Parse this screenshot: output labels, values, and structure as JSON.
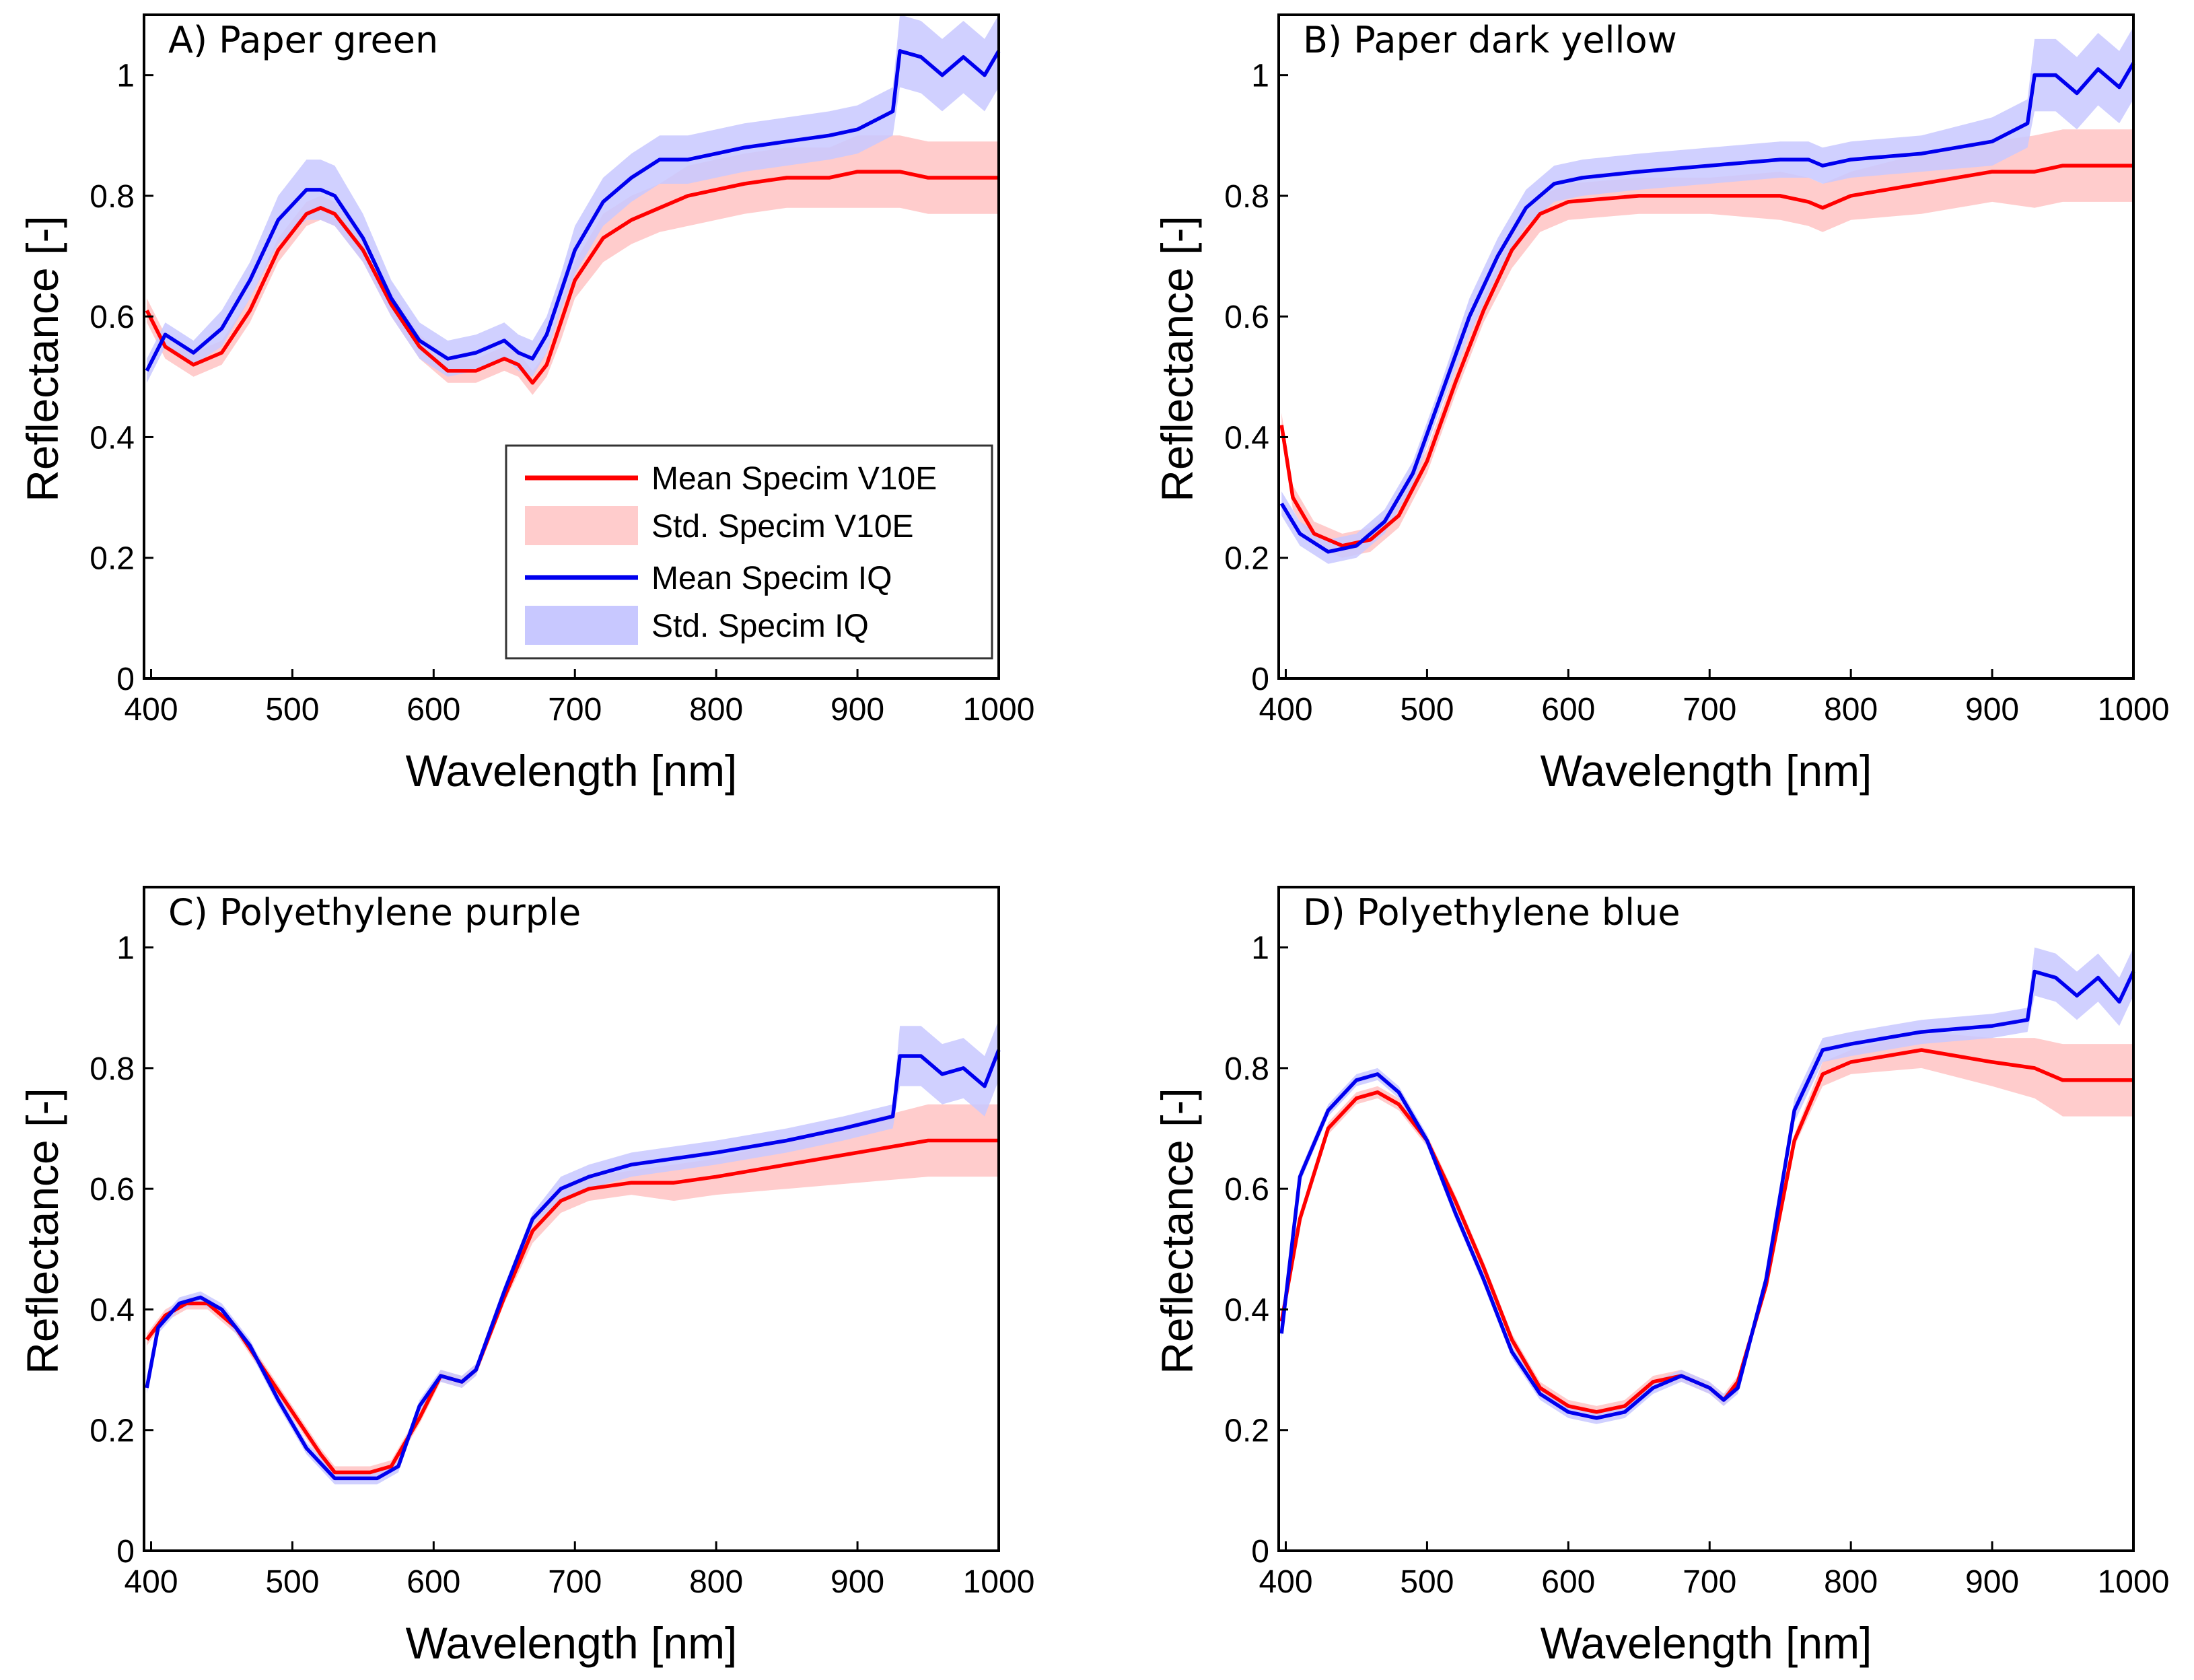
{
  "colors": {
    "v10e_line": "#ff0000",
    "v10e_band": "#ffcccc",
    "iq_line": "#0000ee",
    "iq_band": "#c8c8ff"
  },
  "legend": {
    "placement": "lower-right (panel A)",
    "items": [
      {
        "label": "Mean Specim V10E",
        "kind": "line",
        "color": "#ff0000"
      },
      {
        "label": "Std. Specim V10E",
        "kind": "band",
        "color": "#ffcccc"
      },
      {
        "label": "Mean Specim IQ",
        "kind": "line",
        "color": "#0000ee"
      },
      {
        "label": "Std. Specim IQ",
        "kind": "band",
        "color": "#c8c8ff"
      }
    ]
  },
  "chart_data": [
    {
      "type": "line",
      "title": "A) Paper green",
      "xlabel": "Wavelength [nm]",
      "ylabel": "Reflectance [-]",
      "xlim": [
        395,
        1000
      ],
      "ylim": [
        0,
        1.1
      ],
      "xticks": [
        "400",
        "500",
        "600",
        "700",
        "800",
        "900",
        "1000"
      ],
      "yticks": [
        "0",
        "0.2",
        "0.4",
        "0.6",
        "0.8",
        "1"
      ],
      "grid": false,
      "series": [
        {
          "name": "Mean Specim V10E",
          "x": [
            397,
            410,
            430,
            450,
            470,
            490,
            510,
            520,
            530,
            550,
            570,
            590,
            610,
            630,
            650,
            660,
            670,
            680,
            690,
            700,
            720,
            740,
            760,
            780,
            800,
            820,
            850,
            880,
            900,
            930,
            950,
            1000
          ],
          "y": [
            0.61,
            0.55,
            0.52,
            0.54,
            0.61,
            0.71,
            0.77,
            0.78,
            0.77,
            0.71,
            0.62,
            0.55,
            0.51,
            0.51,
            0.53,
            0.52,
            0.49,
            0.52,
            0.59,
            0.66,
            0.73,
            0.76,
            0.78,
            0.8,
            0.81,
            0.82,
            0.83,
            0.83,
            0.84,
            0.84,
            0.83,
            0.83
          ],
          "std": [
            0.02,
            0.02,
            0.02,
            0.02,
            0.02,
            0.02,
            0.02,
            0.02,
            0.02,
            0.02,
            0.02,
            0.02,
            0.02,
            0.02,
            0.02,
            0.02,
            0.02,
            0.02,
            0.03,
            0.03,
            0.04,
            0.04,
            0.04,
            0.05,
            0.05,
            0.05,
            0.05,
            0.05,
            0.06,
            0.06,
            0.06,
            0.06
          ]
        },
        {
          "name": "Mean Specim IQ",
          "x": [
            397,
            410,
            430,
            450,
            470,
            490,
            510,
            520,
            530,
            550,
            570,
            590,
            610,
            630,
            650,
            660,
            670,
            680,
            690,
            700,
            720,
            740,
            760,
            780,
            800,
            820,
            850,
            880,
            900,
            925,
            930,
            945,
            960,
            975,
            990,
            1000
          ],
          "y": [
            0.51,
            0.57,
            0.54,
            0.58,
            0.66,
            0.76,
            0.81,
            0.81,
            0.8,
            0.73,
            0.63,
            0.56,
            0.53,
            0.54,
            0.56,
            0.54,
            0.53,
            0.57,
            0.64,
            0.71,
            0.79,
            0.83,
            0.86,
            0.86,
            0.87,
            0.88,
            0.89,
            0.9,
            0.91,
            0.94,
            1.04,
            1.03,
            1.0,
            1.03,
            1.0,
            1.04
          ],
          "std": [
            0.02,
            0.02,
            0.02,
            0.03,
            0.03,
            0.04,
            0.05,
            0.05,
            0.05,
            0.04,
            0.03,
            0.03,
            0.03,
            0.03,
            0.03,
            0.03,
            0.03,
            0.03,
            0.03,
            0.04,
            0.04,
            0.04,
            0.04,
            0.04,
            0.04,
            0.04,
            0.04,
            0.04,
            0.04,
            0.04,
            0.06,
            0.06,
            0.06,
            0.06,
            0.06,
            0.06
          ]
        }
      ]
    },
    {
      "type": "line",
      "title": "B) Paper dark yellow",
      "xlabel": "Wavelength [nm]",
      "ylabel": "Reflectance [-]",
      "xlim": [
        395,
        1000
      ],
      "ylim": [
        0,
        1.1
      ],
      "xticks": [
        "400",
        "500",
        "600",
        "700",
        "800",
        "900",
        "1000"
      ],
      "yticks": [
        "0",
        "0.2",
        "0.4",
        "0.6",
        "0.8",
        "1"
      ],
      "grid": false,
      "series": [
        {
          "name": "Mean Specim V10E",
          "x": [
            397,
            405,
            420,
            440,
            460,
            480,
            500,
            520,
            540,
            560,
            580,
            600,
            650,
            700,
            750,
            770,
            780,
            800,
            850,
            900,
            930,
            950,
            1000
          ],
          "y": [
            0.42,
            0.3,
            0.24,
            0.22,
            0.23,
            0.27,
            0.36,
            0.49,
            0.61,
            0.71,
            0.77,
            0.79,
            0.8,
            0.8,
            0.8,
            0.79,
            0.78,
            0.8,
            0.82,
            0.84,
            0.84,
            0.85,
            0.85
          ],
          "std": [
            0.02,
            0.02,
            0.02,
            0.02,
            0.02,
            0.02,
            0.02,
            0.02,
            0.02,
            0.03,
            0.03,
            0.03,
            0.03,
            0.03,
            0.04,
            0.04,
            0.04,
            0.04,
            0.05,
            0.05,
            0.06,
            0.06,
            0.06
          ]
        },
        {
          "name": "Mean Specim IQ",
          "x": [
            397,
            410,
            430,
            450,
            470,
            490,
            510,
            530,
            550,
            570,
            590,
            610,
            650,
            700,
            750,
            770,
            780,
            800,
            850,
            900,
            925,
            930,
            945,
            960,
            975,
            990,
            1000
          ],
          "y": [
            0.29,
            0.24,
            0.21,
            0.22,
            0.26,
            0.34,
            0.47,
            0.6,
            0.7,
            0.78,
            0.82,
            0.83,
            0.84,
            0.85,
            0.86,
            0.86,
            0.85,
            0.86,
            0.87,
            0.89,
            0.92,
            1.0,
            1.0,
            0.97,
            1.01,
            0.98,
            1.02
          ],
          "std": [
            0.02,
            0.02,
            0.02,
            0.02,
            0.02,
            0.02,
            0.02,
            0.03,
            0.03,
            0.03,
            0.03,
            0.03,
            0.03,
            0.03,
            0.03,
            0.03,
            0.03,
            0.03,
            0.03,
            0.04,
            0.04,
            0.06,
            0.06,
            0.06,
            0.06,
            0.06,
            0.06
          ]
        }
      ]
    },
    {
      "type": "line",
      "title": "C) Polyethylene purple",
      "xlabel": "Wavelength [nm]",
      "ylabel": "Reflectance [-]",
      "xlim": [
        395,
        1000
      ],
      "ylim": [
        0,
        1.1
      ],
      "xticks": [
        "400",
        "500",
        "600",
        "700",
        "800",
        "900",
        "1000"
      ],
      "yticks": [
        "0",
        "0.2",
        "0.4",
        "0.6",
        "0.8",
        "1"
      ],
      "grid": false,
      "series": [
        {
          "name": "Mean Specim V10E",
          "x": [
            397,
            410,
            425,
            440,
            460,
            480,
            500,
            520,
            530,
            540,
            555,
            570,
            590,
            605,
            620,
            630,
            650,
            670,
            690,
            710,
            740,
            770,
            800,
            850,
            900,
            950,
            1000
          ],
          "y": [
            0.35,
            0.39,
            0.41,
            0.41,
            0.37,
            0.3,
            0.23,
            0.16,
            0.13,
            0.13,
            0.13,
            0.14,
            0.22,
            0.29,
            0.28,
            0.3,
            0.42,
            0.53,
            0.58,
            0.6,
            0.61,
            0.61,
            0.62,
            0.64,
            0.66,
            0.68,
            0.68
          ],
          "std": [
            0.01,
            0.01,
            0.01,
            0.01,
            0.01,
            0.01,
            0.01,
            0.01,
            0.01,
            0.01,
            0.01,
            0.01,
            0.01,
            0.01,
            0.01,
            0.01,
            0.01,
            0.02,
            0.02,
            0.02,
            0.02,
            0.03,
            0.03,
            0.04,
            0.05,
            0.06,
            0.06
          ]
        },
        {
          "name": "Mean Specim IQ",
          "x": [
            397,
            405,
            420,
            435,
            450,
            470,
            490,
            510,
            530,
            545,
            560,
            575,
            590,
            605,
            620,
            630,
            650,
            670,
            690,
            710,
            740,
            770,
            800,
            850,
            890,
            925,
            930,
            945,
            960,
            975,
            990,
            1000
          ],
          "y": [
            0.27,
            0.37,
            0.41,
            0.42,
            0.4,
            0.34,
            0.25,
            0.17,
            0.12,
            0.12,
            0.12,
            0.14,
            0.24,
            0.29,
            0.28,
            0.3,
            0.43,
            0.55,
            0.6,
            0.62,
            0.64,
            0.65,
            0.66,
            0.68,
            0.7,
            0.72,
            0.82,
            0.82,
            0.79,
            0.8,
            0.77,
            0.83
          ],
          "std": [
            0.01,
            0.01,
            0.01,
            0.01,
            0.01,
            0.01,
            0.01,
            0.01,
            0.01,
            0.01,
            0.01,
            0.01,
            0.01,
            0.01,
            0.01,
            0.01,
            0.01,
            0.01,
            0.02,
            0.02,
            0.02,
            0.02,
            0.02,
            0.02,
            0.02,
            0.02,
            0.05,
            0.05,
            0.05,
            0.05,
            0.05,
            0.05
          ]
        }
      ]
    },
    {
      "type": "line",
      "title": "D) Polyethylene blue",
      "xlabel": "Wavelength [nm]",
      "ylabel": "Reflectance [-]",
      "xlim": [
        395,
        1000
      ],
      "ylim": [
        0,
        1.1
      ],
      "xticks": [
        "400",
        "500",
        "600",
        "700",
        "800",
        "900",
        "1000"
      ],
      "yticks": [
        "0",
        "0.2",
        "0.4",
        "0.6",
        "0.8",
        "1"
      ],
      "grid": false,
      "series": [
        {
          "name": "Mean Specim V10E",
          "x": [
            397,
            410,
            430,
            450,
            465,
            480,
            500,
            520,
            540,
            560,
            580,
            600,
            620,
            640,
            660,
            680,
            700,
            710,
            720,
            740,
            760,
            780,
            800,
            850,
            900,
            930,
            950,
            1000
          ],
          "y": [
            0.38,
            0.55,
            0.7,
            0.75,
            0.76,
            0.74,
            0.68,
            0.58,
            0.47,
            0.35,
            0.27,
            0.24,
            0.23,
            0.24,
            0.28,
            0.29,
            0.27,
            0.25,
            0.28,
            0.44,
            0.68,
            0.79,
            0.81,
            0.83,
            0.81,
            0.8,
            0.78,
            0.78
          ],
          "std": [
            0.01,
            0.01,
            0.01,
            0.01,
            0.01,
            0.01,
            0.01,
            0.01,
            0.01,
            0.01,
            0.01,
            0.01,
            0.01,
            0.01,
            0.01,
            0.01,
            0.01,
            0.01,
            0.01,
            0.01,
            0.01,
            0.02,
            0.02,
            0.03,
            0.04,
            0.05,
            0.06,
            0.06
          ]
        },
        {
          "name": "Mean Specim IQ",
          "x": [
            397,
            410,
            430,
            450,
            465,
            480,
            500,
            520,
            540,
            560,
            580,
            600,
            620,
            640,
            660,
            680,
            700,
            710,
            720,
            740,
            760,
            780,
            800,
            850,
            900,
            925,
            930,
            945,
            960,
            975,
            990,
            1000
          ],
          "y": [
            0.36,
            0.62,
            0.73,
            0.78,
            0.79,
            0.76,
            0.68,
            0.56,
            0.45,
            0.33,
            0.26,
            0.23,
            0.22,
            0.23,
            0.27,
            0.29,
            0.27,
            0.25,
            0.27,
            0.45,
            0.73,
            0.83,
            0.84,
            0.86,
            0.87,
            0.88,
            0.96,
            0.95,
            0.92,
            0.95,
            0.91,
            0.96
          ],
          "std": [
            0.01,
            0.01,
            0.01,
            0.01,
            0.01,
            0.01,
            0.01,
            0.01,
            0.01,
            0.01,
            0.01,
            0.01,
            0.01,
            0.01,
            0.01,
            0.01,
            0.01,
            0.01,
            0.01,
            0.01,
            0.02,
            0.02,
            0.02,
            0.02,
            0.02,
            0.02,
            0.04,
            0.04,
            0.04,
            0.04,
            0.04,
            0.04
          ]
        }
      ]
    }
  ]
}
